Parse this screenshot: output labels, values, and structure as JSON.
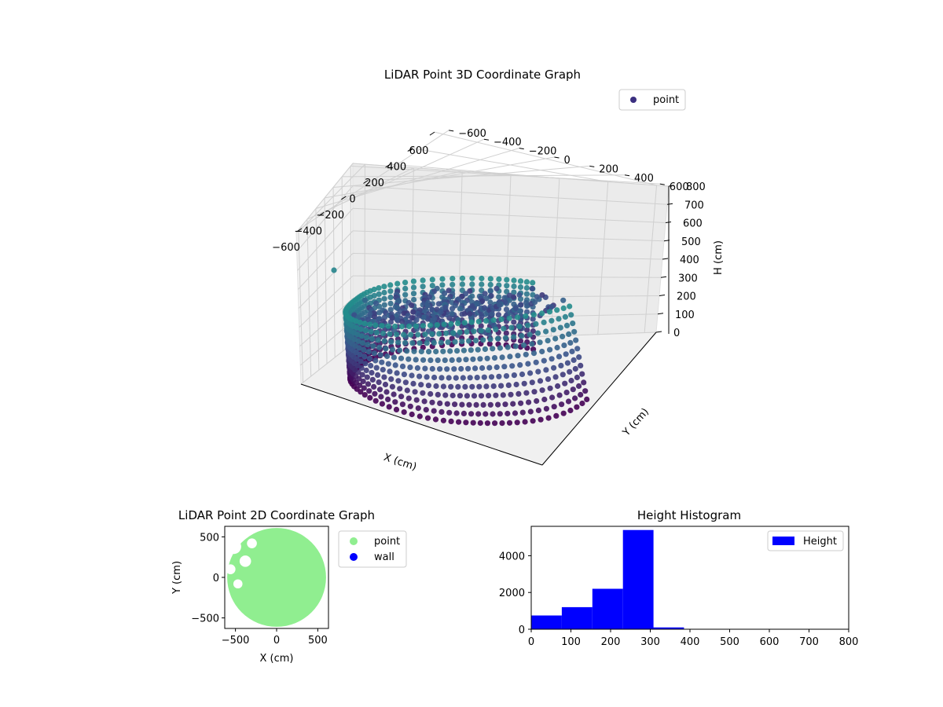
{
  "chart_data": [
    {
      "type": "scatter",
      "projection": "3d",
      "title": "LiDAR Point 3D Coordinate Graph",
      "xlabel": "X (cm)",
      "ylabel": "Y (cm)",
      "zlabel": "H (cm)",
      "xlim": [
        -650,
        650
      ],
      "ylim": [
        -650,
        650
      ],
      "zlim": [
        800,
        0
      ],
      "xticks": [
        -600,
        -400,
        -200,
        0,
        200,
        400,
        600
      ],
      "yticks": [
        -600,
        -400,
        -200,
        0,
        200,
        400,
        600
      ],
      "zticks": [
        0,
        100,
        200,
        300,
        400,
        500,
        600,
        700,
        800
      ],
      "legend": {
        "position": "top-right",
        "entries": [
          {
            "label": "point",
            "color": "#3b2f80"
          }
        ]
      },
      "colormap": [
        "#440154",
        "#3b528b",
        "#21918c"
      ],
      "grid": true,
      "series": [
        {
          "name": "point",
          "shape": "ring-wall",
          "radius": 600,
          "h_range": [
            0,
            320
          ],
          "arc_deg": [
            70,
            360
          ],
          "points_description_counts": {
            "rows": 12,
            "angles": 90
          }
        }
      ]
    },
    {
      "type": "scatter",
      "title": "LiDAR Point 2D Coordinate Graph",
      "xlabel": "X (cm)",
      "ylabel": "Y (cm)",
      "xlim": [
        -630,
        630
      ],
      "ylim": [
        -630,
        630
      ],
      "xticks": [
        -500,
        0,
        500
      ],
      "yticks": [
        -500,
        0,
        500
      ],
      "legend": {
        "position": "outside-right",
        "entries": [
          {
            "label": "point",
            "color": "#90ee90"
          },
          {
            "label": "wall",
            "color": "#0000ff"
          }
        ]
      },
      "series": [
        {
          "name": "point",
          "color": "#90ee90",
          "shape": "disc",
          "radius": 600
        },
        {
          "name": "wall",
          "color": "#0000ff",
          "values": []
        }
      ]
    },
    {
      "type": "bar",
      "subtype": "histogram",
      "title": "Height Histogram",
      "xlim": [
        0,
        800
      ],
      "ylim": [
        0,
        5600
      ],
      "xticks": [
        0,
        100,
        200,
        300,
        400,
        500,
        600,
        700,
        800
      ],
      "yticks": [
        0,
        2000,
        4000
      ],
      "legend": {
        "position": "top-right",
        "entries": [
          {
            "label": "Height",
            "color": "#0000ff"
          }
        ]
      },
      "color": "#0000ff",
      "bin_edges": [
        0,
        77,
        154,
        231,
        308,
        385,
        462,
        539,
        616,
        693,
        770
      ],
      "counts": [
        750,
        1200,
        2200,
        5400,
        100,
        0,
        0,
        0,
        0,
        0
      ]
    }
  ]
}
